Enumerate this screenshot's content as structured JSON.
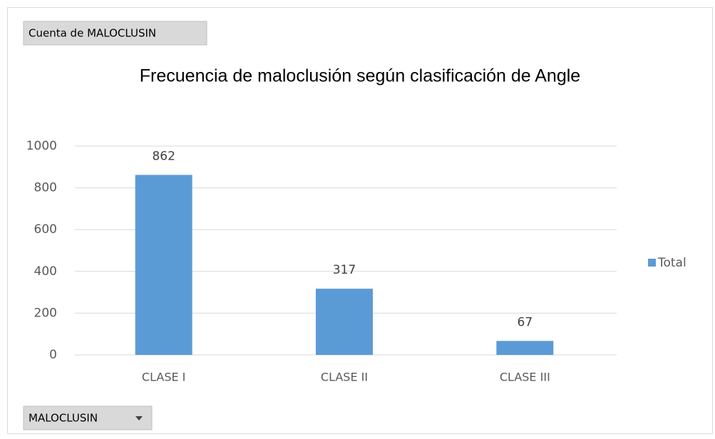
{
  "chart_data": {
    "type": "bar",
    "value_field": "Cuenta de MALOCLUSIN",
    "axis_field": "MALOCLUSIN",
    "title": "Frecuencia de maloclusión según clasificación de Angle",
    "categories": [
      "CLASE I",
      "CLASE II",
      "CLASE III"
    ],
    "series": [
      {
        "name": "Total",
        "color": "#5b9bd5",
        "values": [
          862,
          317,
          67
        ]
      }
    ],
    "ylim": [
      0,
      1000
    ],
    "yticks": [
      0,
      200,
      400,
      600,
      800,
      1000
    ],
    "grid": true,
    "legend": "right"
  }
}
